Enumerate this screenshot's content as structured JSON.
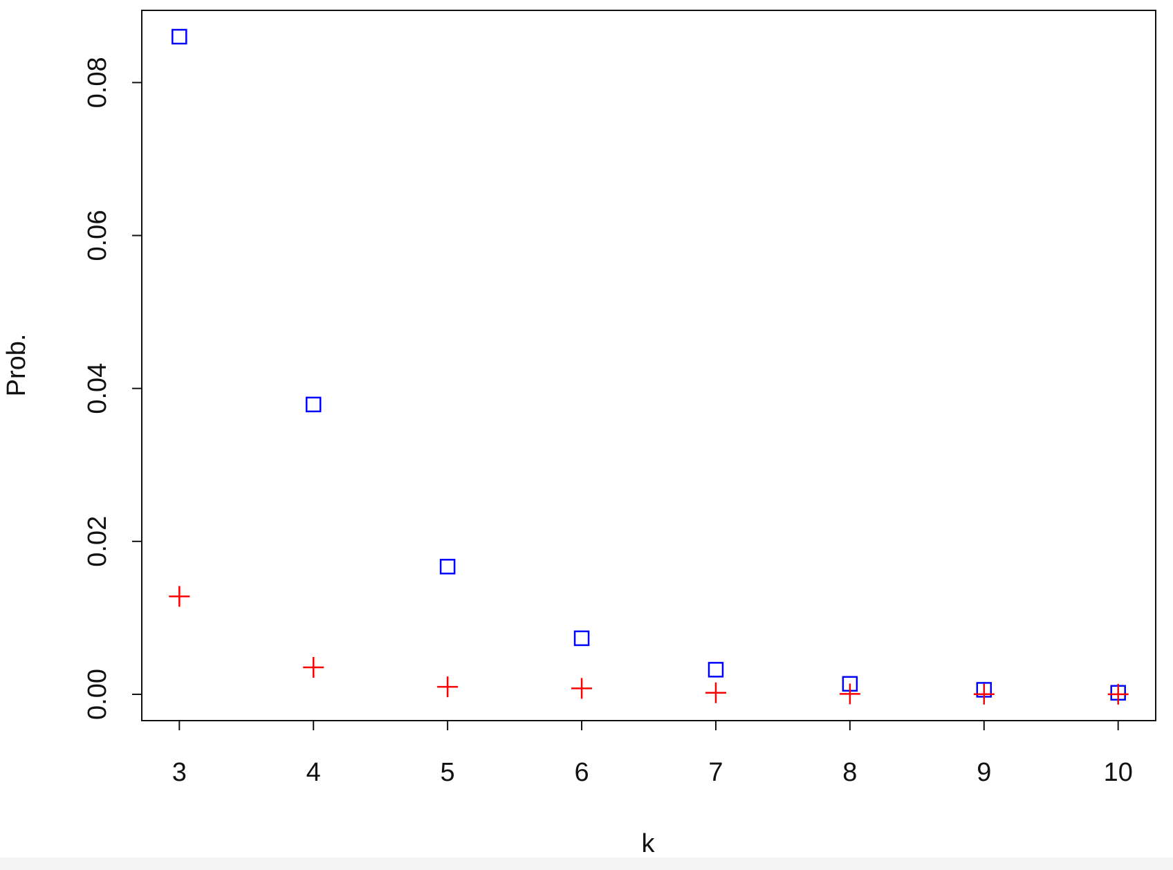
{
  "chart_data": {
    "type": "scatter",
    "x_label": "k",
    "y_label": "Prob.",
    "x": [
      3,
      4,
      5,
      6,
      7,
      8,
      9,
      10
    ],
    "series": [
      {
        "color": "#0000ff",
        "marker": "square",
        "values": [
          0.086,
          0.0379,
          0.0167,
          0.00733,
          0.00322,
          0.00137,
          0.00059,
          0.0002
        ]
      },
      {
        "color": "#ff0000",
        "marker": "plus",
        "values": [
          0.0128,
          0.00352,
          0.00098,
          0.00078,
          0.0002,
          5e-05,
          2e-05,
          1e-05
        ]
      }
    ],
    "xlim": [
      2.72,
      10.28
    ],
    "xticks": [
      3,
      4,
      5,
      6,
      7,
      8,
      9,
      10
    ],
    "ylim": [
      -0.00344,
      0.08944
    ],
    "yticks": [
      {
        "value": 0,
        "label": "0.00"
      },
      0.02,
      0.04,
      0.06,
      0.08
    ],
    "grid": false
  }
}
